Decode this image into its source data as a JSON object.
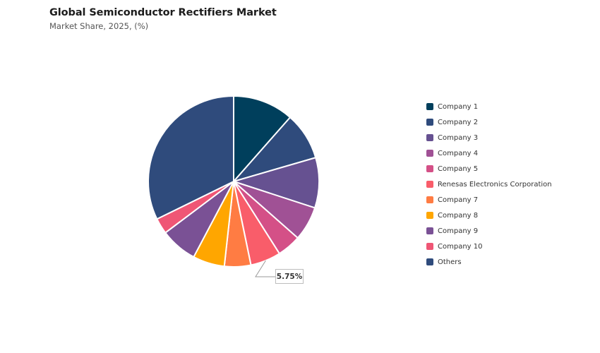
{
  "header": {
    "title": "Global Semiconductor Rectifiers Market",
    "subtitle": "Market Share, 2025, (%)"
  },
  "chart_data": {
    "type": "pie",
    "title": "Global Semiconductor Rectifiers Market",
    "subtitle": "Market Share, 2025, (%)",
    "legend_position": "right",
    "slices": [
      {
        "label": "Company 1",
        "value": 11.5,
        "color": "#003f5c"
      },
      {
        "label": "Company 2",
        "value": 9.0,
        "color": "#2f4b7c"
      },
      {
        "label": "Company 3",
        "value": 9.5,
        "color": "#665191"
      },
      {
        "label": "Company 4",
        "value": 6.5,
        "color": "#a05195"
      },
      {
        "label": "Company 5",
        "value": 4.5,
        "color": "#d45087"
      },
      {
        "label": "Renesas Electronics Corporation",
        "value": 5.75,
        "color": "#f95d6a"
      },
      {
        "label": "Company 7",
        "value": 5.0,
        "color": "#ff7c43"
      },
      {
        "label": "Company 8",
        "value": 6.0,
        "color": "#ffa600"
      },
      {
        "label": "Company 9",
        "value": 7.0,
        "color": "#7a5195"
      },
      {
        "label": "Company 10",
        "value": 3.0,
        "color": "#ef5675"
      },
      {
        "label": "Others",
        "value": 32.25,
        "color": "#2f4b7c"
      }
    ],
    "callout": {
      "label": "5.75%",
      "slice": "Renesas Electronics Corporation"
    }
  }
}
